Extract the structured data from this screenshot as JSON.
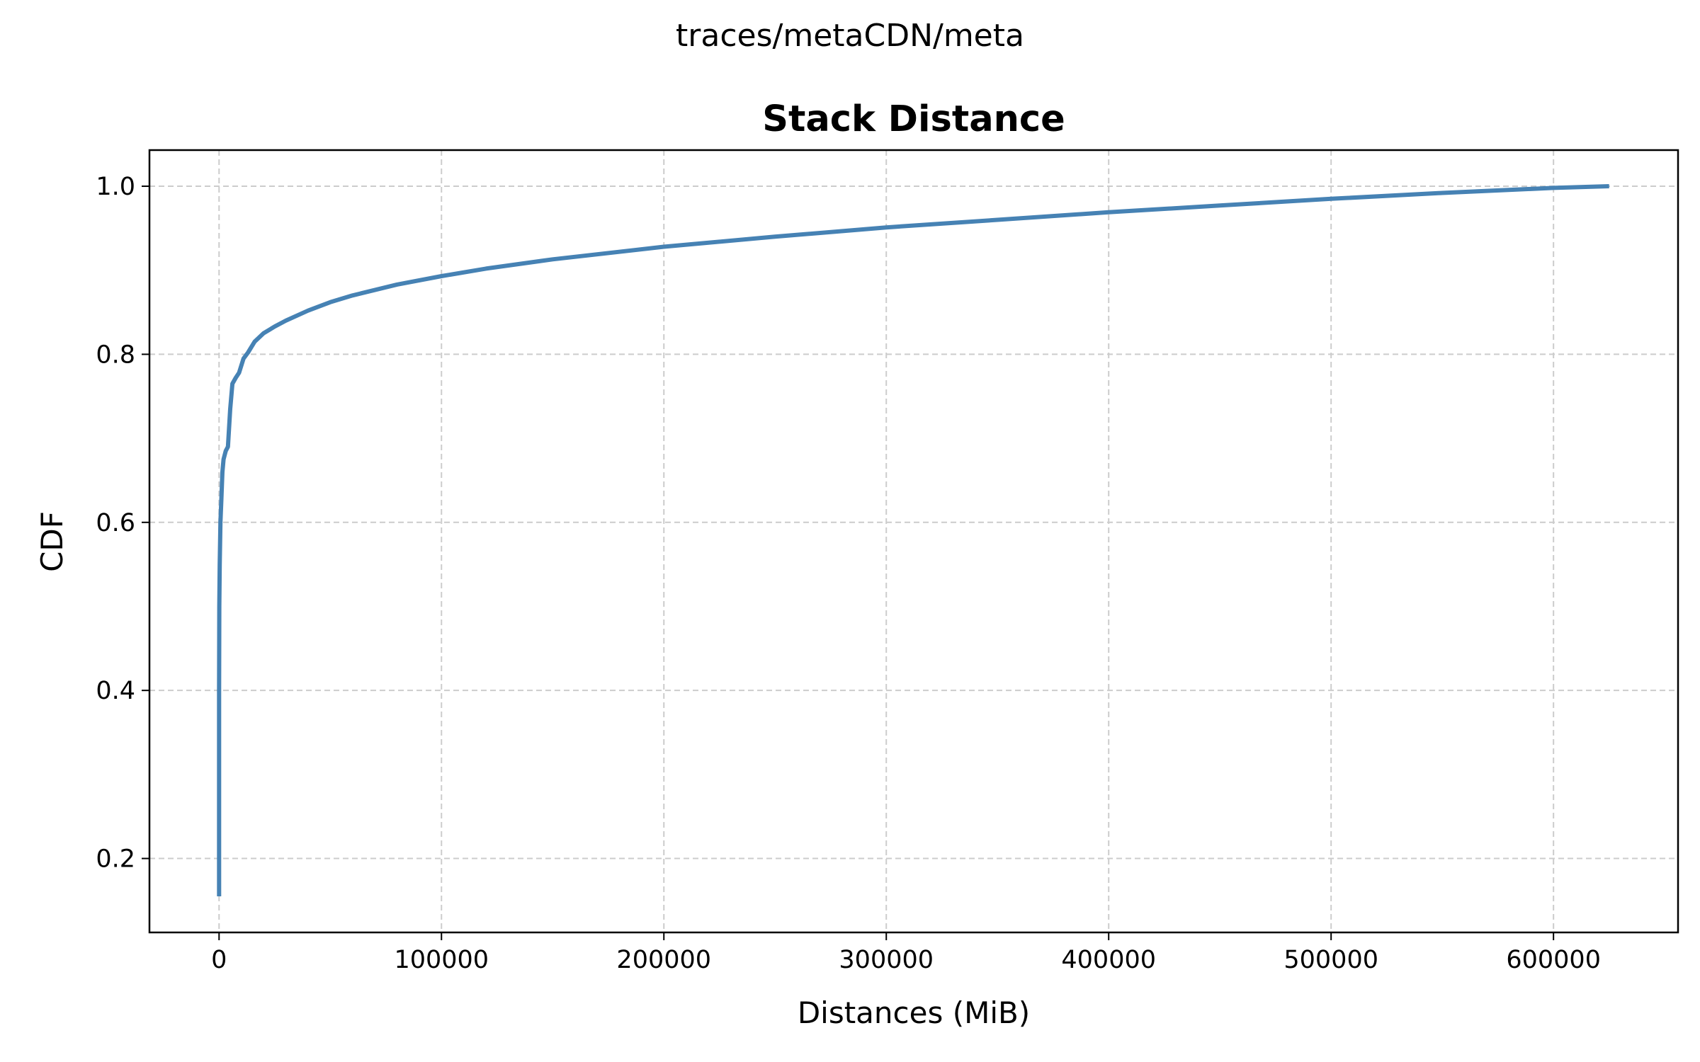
{
  "suptitle": "traces/metaCDN/meta",
  "chart_data": {
    "type": "line",
    "title": "Stack Distance",
    "xlabel": "Distances (MiB)",
    "ylabel": "CDF",
    "xlim": [
      -31300,
      656000
    ],
    "ylim": [
      0.112,
      1.043
    ],
    "xticks": [
      0,
      100000,
      200000,
      300000,
      400000,
      500000,
      600000
    ],
    "xtick_labels": [
      "0",
      "100000",
      "200000",
      "300000",
      "400000",
      "500000",
      "600000"
    ],
    "yticks": [
      0.2,
      0.4,
      0.6,
      0.8,
      1.0
    ],
    "ytick_labels": [
      "0.2",
      "0.4",
      "0.6",
      "0.8",
      "1.0"
    ],
    "grid": true,
    "line_color": "#4682b4",
    "series": [
      {
        "x": [
          0,
          0,
          100,
          300,
          600,
          1000,
          1500,
          2000,
          3000,
          4000,
          5000,
          6000,
          7500,
          9000,
          11000,
          13000,
          16000,
          20000,
          25000,
          30000,
          40000,
          50000,
          60000,
          80000,
          100000,
          120000,
          150000,
          200000,
          250000,
          300000,
          350000,
          400000,
          450000,
          500000,
          550000,
          600000,
          625000
        ],
        "y": [
          0.155,
          0.4,
          0.5,
          0.55,
          0.6,
          0.625,
          0.66,
          0.675,
          0.685,
          0.69,
          0.735,
          0.765,
          0.772,
          0.778,
          0.795,
          0.802,
          0.815,
          0.825,
          0.833,
          0.84,
          0.852,
          0.862,
          0.87,
          0.883,
          0.893,
          0.902,
          0.913,
          0.928,
          0.94,
          0.951,
          0.96,
          0.969,
          0.977,
          0.985,
          0.992,
          0.998,
          1.0
        ]
      }
    ]
  }
}
